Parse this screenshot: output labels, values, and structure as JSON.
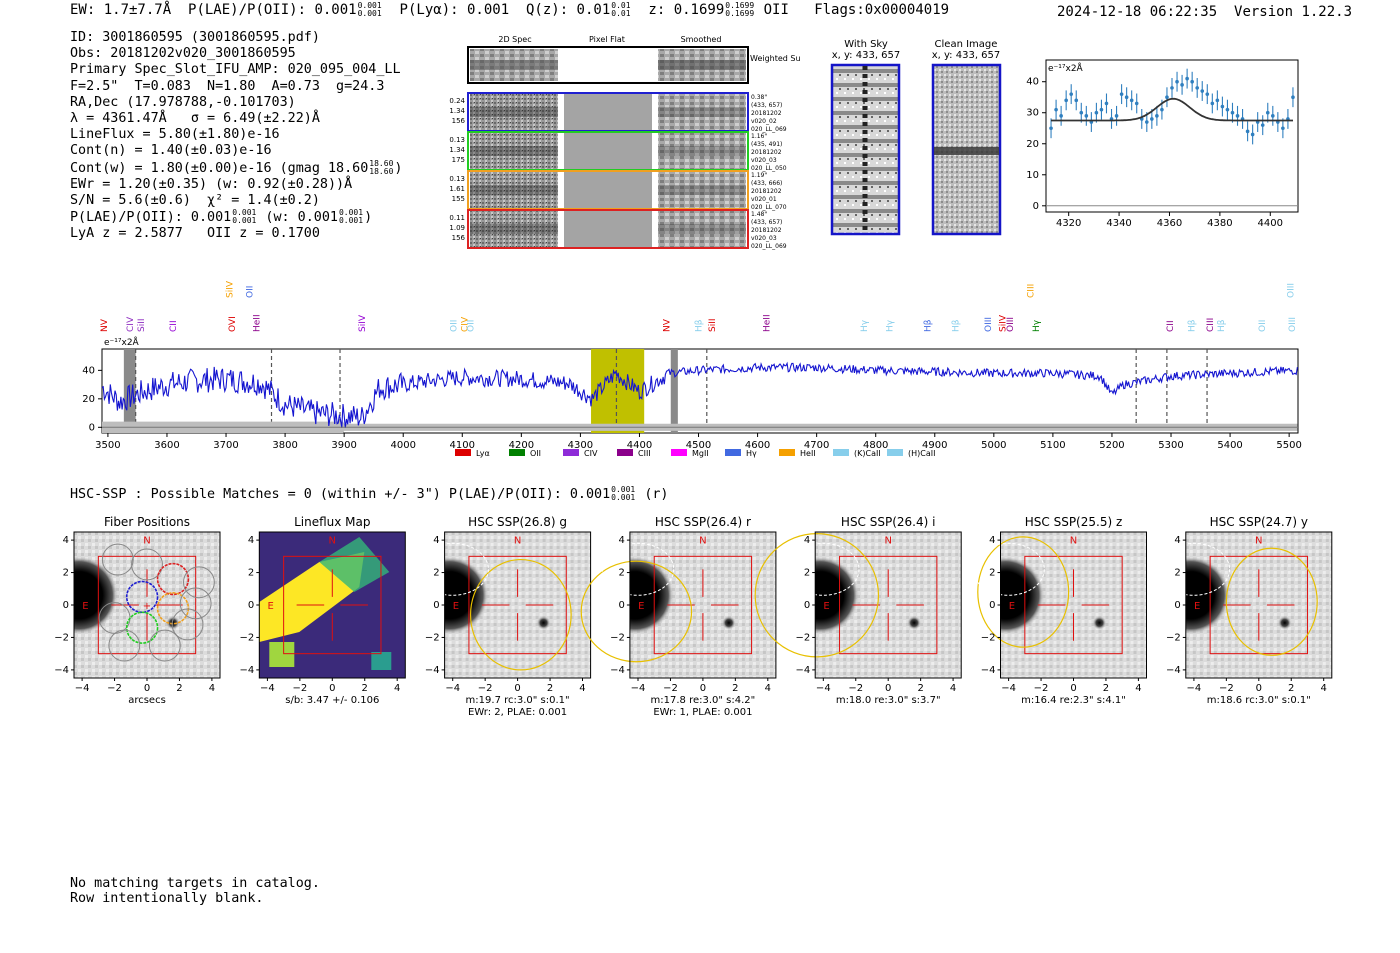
{
  "header": {
    "ew": "EW: 1.7±7.7Å",
    "plae_label": "P(LAE)/P(OII): 0.001",
    "plae_sup": "0.001",
    "plae_sub": "0.001",
    "plya": "P(Lyα): 0.001",
    "qz_label": "Q(z): 0.01",
    "qz_sup": "0.01",
    "qz_sub": "0.01",
    "z_label": "z: 0.1699",
    "z_sup": "0.1699",
    "z_sub": "0.1699",
    "z_line": "OII",
    "flags": "Flags:0x00004019",
    "timestamp": "2024-12-18 06:22:35",
    "version": "Version 1.22.3"
  },
  "info": {
    "id": "ID: 3001860595 (3001860595.pdf)",
    "obs": "Obs: 20181202v020_3001860595",
    "slot": "Primary Spec_Slot_IFU_AMP: 020_095_004_LL",
    "params": "F=2.5\"  T=0.083  N=1.80  A=0.73  g=24.3",
    "radec": "RA,Dec (17.978788,-0.101703)",
    "lambda": "λ = 4361.47Å   σ = 6.49(±2.22)Å",
    "lineflux": "LineFlux = 5.80(±1.80)e-16",
    "contn": "Cont(n) = 1.40(±0.03)e-16",
    "contw": "Cont(w) = 1.80(±0.00)e-16 (gmag 18.60",
    "contw_sup": "18.60",
    "contw_sub": "18.60",
    "ewr": "EWr = 1.20(±0.35) (w: 0.92(±0.28))Å",
    "sn": "S/N = 5.6(±0.6)  χ² = 1.4(±0.2)",
    "plae": "P(LAE)/P(OII): 0.001",
    "plae_sup": "0.001",
    "plae_sub": "0.001",
    "plae_w": "(w: 0.001",
    "plae_w_sup": "0.001",
    "plae_w_sub": "0.001",
    "redshifts": "LyA z = 2.5877   OII z = 0.1700"
  },
  "cutouts": {
    "col_headers": [
      "2D Spec",
      "Pixel Flat",
      "Smoothed"
    ],
    "weighted_sum": "Weighted Sum",
    "rows": [
      {
        "color": "#1f1fd0",
        "left": [
          "0.24",
          "1.34",
          "156"
        ],
        "right": [
          "0.38\"",
          "(433, 657)",
          "20181202",
          "v020_02",
          "020_LL_069"
        ]
      },
      {
        "color": "#22cc22",
        "left": [
          "0.13",
          "1.34",
          "175"
        ],
        "right": [
          "1.16\"",
          "(435, 491)",
          "20181202",
          "v020_03",
          "020_LL_050"
        ]
      },
      {
        "color": "#f0a020",
        "left": [
          "0.13",
          "1.61",
          "155"
        ],
        "right": [
          "1.19\"",
          "(433, 666)",
          "20181202",
          "v020_01",
          "020_LL_070"
        ]
      },
      {
        "color": "#dd2222",
        "left": [
          "0.11",
          "1.09",
          "156"
        ],
        "right": [
          "1.48\"",
          "(433, 657)",
          "20181202",
          "v020_03",
          "020_LL_069"
        ]
      }
    ]
  },
  "sky": {
    "with_sky_title": "With Sky",
    "with_sky_xy": "x, y: 433, 657",
    "clean_title": "Clean Image",
    "clean_xy": "x, y: 433, 657"
  },
  "fit_plot": {
    "ylabel_unit": "e⁻¹⁷x2Å",
    "xticks": [
      4320,
      4340,
      4360,
      4380,
      4400
    ],
    "yticks": [
      0,
      10,
      20,
      30,
      40
    ],
    "xlim": [
      4311,
      4411
    ],
    "ylim": [
      -2,
      47
    ],
    "x": [
      4313,
      4315,
      4317,
      4319,
      4321,
      4323,
      4325,
      4327,
      4329,
      4331,
      4333,
      4335,
      4337,
      4339,
      4341,
      4343,
      4345,
      4347,
      4349,
      4351,
      4353,
      4355,
      4357,
      4359,
      4361,
      4363,
      4365,
      4367,
      4369,
      4371,
      4373,
      4375,
      4377,
      4379,
      4381,
      4383,
      4385,
      4387,
      4389,
      4391,
      4393,
      4395,
      4397,
      4399,
      4401,
      4403,
      4405,
      4407,
      4409
    ],
    "y": [
      25,
      31,
      29,
      34,
      36,
      34,
      30,
      29,
      27,
      30,
      31,
      33,
      28,
      29,
      36,
      35,
      34,
      33,
      28,
      27,
      28,
      29,
      31,
      35,
      38,
      40,
      39,
      41,
      40,
      38,
      37,
      36,
      33,
      34,
      32,
      31,
      30,
      29,
      28,
      24,
      23,
      27,
      26,
      30,
      29,
      27,
      25,
      28,
      35
    ],
    "model_continuum": 27.5,
    "model_amp": 7.0,
    "model_center": 4361.5,
    "model_sigma": 6.5
  },
  "full_spectrum": {
    "ylabel_unit": "e⁻¹⁷x2Å",
    "xticks": [
      3500,
      3600,
      3700,
      3800,
      3900,
      4000,
      4100,
      4200,
      4300,
      4400,
      4500,
      4600,
      4700,
      4800,
      4900,
      5000,
      5100,
      5200,
      5300,
      5400,
      5500
    ],
    "yticks": [
      0,
      20,
      40
    ],
    "xlim": [
      3490,
      5515
    ],
    "ylim": [
      -4,
      55
    ],
    "highlight_range": [
      4318,
      4408
    ],
    "gray_bands": [
      [
        3527,
        3547
      ],
      [
        4453,
        4465
      ]
    ],
    "dashed_lines": [
      3547,
      3777,
      3893,
      4361,
      4514,
      5241,
      5293,
      5361
    ],
    "lines": [
      {
        "name": "NV",
        "x": 3490,
        "color": "#dd0000",
        "row": 1
      },
      {
        "name": "CIV",
        "x": 3537,
        "color": "#8e2bc0",
        "row": 1
      },
      {
        "name": "SiII",
        "x": 3556,
        "color": "#8e2bc0",
        "row": 1
      },
      {
        "name": "CII",
        "x": 3610,
        "color": "#9400d3",
        "row": 1
      },
      {
        "name": "SiIV",
        "x": 3706,
        "color": "#f5a000",
        "row": 0
      },
      {
        "name": "OVI",
        "x": 3710,
        "color": "#dd0000",
        "row": 1
      },
      {
        "name": "OII",
        "x": 3740,
        "color": "#4169e1",
        "row": 0
      },
      {
        "name": "HeII",
        "x": 3752,
        "color": "#8b008b",
        "row": 1
      },
      {
        "name": "SiIV",
        "x": 3930,
        "color": "#9400d3",
        "row": 1
      },
      {
        "name": "OII",
        "x": 4085,
        "color": "#87ceeb",
        "row": 1
      },
      {
        "name": "CIV",
        "x": 4104,
        "color": "#f5a000",
        "row": 1
      },
      {
        "name": "OII",
        "x": 4114,
        "color": "#87ceeb",
        "row": 1
      },
      {
        "name": "NV",
        "x": 4446,
        "color": "#dd0000",
        "row": 1
      },
      {
        "name": "Hβ",
        "x": 4500,
        "color": "#87ceeb",
        "row": 1
      },
      {
        "name": "SiII",
        "x": 4523,
        "color": "#dd0000",
        "row": 1
      },
      {
        "name": "HeII",
        "x": 4615,
        "color": "#8b008b",
        "row": 1
      },
      {
        "name": "Hγ",
        "x": 4780,
        "color": "#87ceeb",
        "row": 1
      },
      {
        "name": "Hγ",
        "x": 4823,
        "color": "#87ceeb",
        "row": 1
      },
      {
        "name": "Hβ",
        "x": 4888,
        "color": "#4169e1",
        "row": 1
      },
      {
        "name": "Hβ",
        "x": 4935,
        "color": "#87ceeb",
        "row": 1
      },
      {
        "name": "OIII",
        "x": 4990,
        "color": "#4169e1",
        "row": 1
      },
      {
        "name": "SiIV",
        "x": 5015,
        "color": "#dd0000",
        "row": 1
      },
      {
        "name": "OIII",
        "x": 5027,
        "color": "#8b008b",
        "row": 1
      },
      {
        "name": "CIII",
        "x": 5062,
        "color": "#f5a000",
        "row": 0
      },
      {
        "name": "Hγ",
        "x": 5071,
        "color": "#008000",
        "row": 1
      },
      {
        "name": "CII",
        "x": 5298,
        "color": "#8b008b",
        "row": 1
      },
      {
        "name": "Hβ",
        "x": 5335,
        "color": "#87ceeb",
        "row": 1
      },
      {
        "name": "CIII",
        "x": 5366,
        "color": "#8b008b",
        "row": 1
      },
      {
        "name": "Hβ",
        "x": 5385,
        "color": "#87ceeb",
        "row": 1
      },
      {
        "name": "OII",
        "x": 5454,
        "color": "#87ceeb",
        "row": 1
      },
      {
        "name": "OIII",
        "x": 5502,
        "color": "#87ceeb",
        "row": 0
      },
      {
        "name": "OIII",
        "x": 5505,
        "color": "#87ceeb",
        "row": 1
      }
    ],
    "legend": [
      {
        "name": "Lyα",
        "color": "#dd0000"
      },
      {
        "name": "OII",
        "color": "#008000"
      },
      {
        "name": "CIV",
        "color": "#8e2bd8"
      },
      {
        "name": "CIII",
        "color": "#8b008b"
      },
      {
        "name": "MgII",
        "color": "#ff00ff"
      },
      {
        "name": "Hγ",
        "color": "#4169e1"
      },
      {
        "name": "HeII",
        "color": "#f5a000"
      },
      {
        "name": "(K)CaII",
        "color": "#87ceeb"
      },
      {
        "name": "(H)CaII",
        "color": "#87ceeb"
      }
    ]
  },
  "hsc_summary": {
    "text": "HSC-SSP : Possible Matches = 0 (within +/- 3\")  P(LAE)/P(OII): 0.001",
    "sup": "0.001",
    "sub": "0.001",
    "suffix": "(r)"
  },
  "panels": [
    {
      "title": "Fiber Positions",
      "cap1": "arcsecs",
      "cap2": ""
    },
    {
      "title": "Lineflux Map",
      "cap1": "s/b: 3.47 +/- 0.106",
      "cap2": ""
    },
    {
      "title": "HSC SSP(26.8) g",
      "cap1": "m:19.7 rc:3.0\"  s:0.1\"",
      "cap2": "EWr: 2, PLAE: 0.001"
    },
    {
      "title": "HSC SSP(26.4) r",
      "cap1": "m:17.8  re:3.0\"  s:4.2\"",
      "cap2": "EWr: 1, PLAE: 0.001"
    },
    {
      "title": "HSC SSP(26.4) i",
      "cap1": "m:18.0  re:3.0\"  s:3.7\"",
      "cap2": ""
    },
    {
      "title": "HSC SSP(25.5) z",
      "cap1": "m:16.4  re:2.3\"  s:4.1\"",
      "cap2": ""
    },
    {
      "title": "HSC SSP(24.7) y",
      "cap1": "m:18.6 rc:3.0\"  s:0.1\"",
      "cap2": ""
    }
  ],
  "panel_axes": {
    "xticks": [
      -4,
      -2,
      0,
      2,
      4
    ],
    "yticks": [
      4,
      2,
      0,
      -2,
      -4
    ],
    "north": "N",
    "east": "E"
  },
  "footer": {
    "line1": "No matching targets in catalog.",
    "line2": "Row intentionally blank."
  }
}
